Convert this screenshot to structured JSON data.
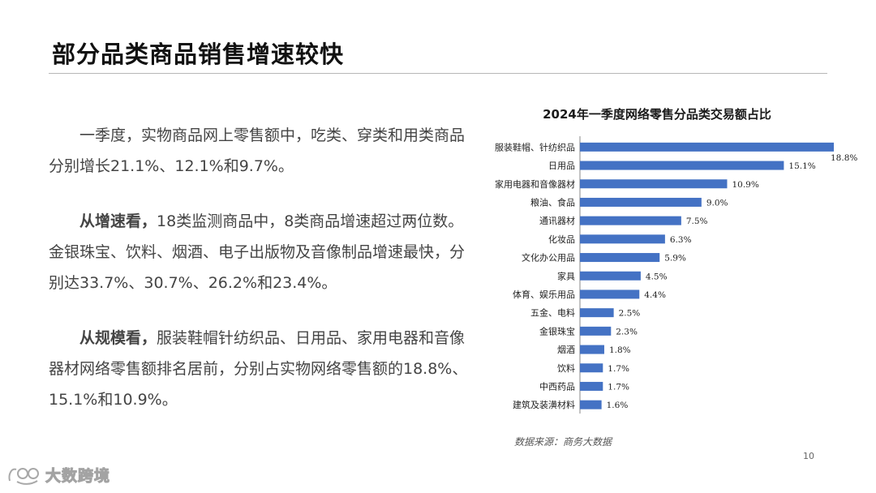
{
  "slide": {
    "title": "部分品类商品销售增速较快",
    "page_number": "10"
  },
  "text": {
    "p1": "一季度，实物商品网上零售额中，吃类、穿类和用类商品分别增长21.1%、12.1%和9.7%。",
    "p2_lead": "从增速看，",
    "p2_body": "18类监测商品中，8类商品增速超过两位数。金银珠宝、饮料、烟酒、电子出版物及音像制品增速最快，分别达33.7%、30.7%、26.2%和23.4%。",
    "p3_lead": "从规模看，",
    "p3_body": "服装鞋帽针纺织品、日用品、家用电器和音像器材网络零售额排名居前，分别占实物网络零售额的18.8%、15.1%和10.9%。"
  },
  "source_note": "数据来源：商务大数据",
  "watermark": {
    "text": "大数跨境",
    "icon": "brand-logo-icon"
  },
  "colors": {
    "bar": "#4472C4",
    "label": "#222222",
    "axis": "#888888"
  },
  "chart_data": {
    "type": "bar",
    "orientation": "horizontal",
    "title": "2024年一季度网络零售分品类交易额占比",
    "xlabel": "",
    "ylabel": "",
    "xlim": [
      0,
      18.8
    ],
    "categories": [
      "服装鞋帽、针纺织品",
      "日用品",
      "家用电器和音像器材",
      "粮油、食品",
      "通讯器材",
      "化妆品",
      "文化办公用品",
      "家具",
      "体育、娱乐用品",
      "五金、电料",
      "金银珠宝",
      "烟酒",
      "饮料",
      "中西药品",
      "建筑及装潢材料"
    ],
    "values": [
      18.8,
      15.1,
      10.9,
      9.0,
      7.5,
      6.3,
      5.9,
      4.5,
      4.4,
      2.5,
      2.3,
      1.8,
      1.7,
      1.7,
      1.6
    ],
    "value_labels": [
      "18.8%",
      "15.1%",
      "10.9%",
      "9.0%",
      "7.5%",
      "6.3%",
      "5.9%",
      "4.5%",
      "4.4%",
      "2.5%",
      "2.3%",
      "1.8%",
      "1.7%",
      "1.7%",
      "1.6%"
    ]
  }
}
